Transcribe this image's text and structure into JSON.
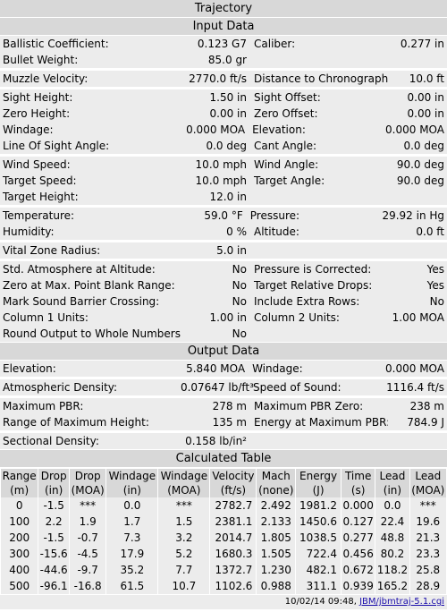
{
  "title": "Trajectory",
  "input_header": "Input Data",
  "output_header": "Output Data",
  "calc_header": "Calculated Table",
  "input_rows": [
    {
      "l1": "Ballistic Coefficient:",
      "v1": "0.123 G7",
      "l2": "Caliber:",
      "v2": "0.277 in",
      "gap": false
    },
    {
      "l1": "Bullet Weight:",
      "v1": "85.0 gr",
      "l2": "",
      "v2": "",
      "gap": false
    },
    {
      "l1": "Muzzle Velocity:",
      "v1": "2770.0 ft/s",
      "l2": "Distance to Chronograph:",
      "v2": "10.0 ft",
      "gap": true
    },
    {
      "l1": "Sight Height:",
      "v1": "1.50 in",
      "l2": "Sight Offset:",
      "v2": "0.00 in",
      "gap": true
    },
    {
      "l1": "Zero Height:",
      "v1": "0.00 in",
      "l2": "Zero Offset:",
      "v2": "0.00 in",
      "gap": false
    },
    {
      "l1": "Windage:",
      "v1": "0.000 MOA",
      "l2": "Elevation:",
      "v2": "0.000 MOA",
      "gap": false
    },
    {
      "l1": "Line Of Sight Angle:",
      "v1": "0.0 deg",
      "l2": "Cant Angle:",
      "v2": "0.0 deg",
      "gap": false
    },
    {
      "l1": "Wind Speed:",
      "v1": "10.0 mph",
      "l2": "Wind Angle:",
      "v2": "90.0 deg",
      "gap": true
    },
    {
      "l1": "Target Speed:",
      "v1": "10.0 mph",
      "l2": "Target Angle:",
      "v2": "90.0 deg",
      "gap": false
    },
    {
      "l1": "Target Height:",
      "v1": "12.0 in",
      "l2": "",
      "v2": "",
      "gap": false
    },
    {
      "l1": "Temperature:",
      "v1": "59.0 °F",
      "l2": "Pressure:",
      "v2": "29.92 in Hg",
      "gap": true
    },
    {
      "l1": "Humidity:",
      "v1": "0 %",
      "l2": "Altitude:",
      "v2": "0.0 ft",
      "gap": false
    },
    {
      "l1": "Vital Zone Radius:",
      "v1": "5.0 in",
      "l2": "",
      "v2": "",
      "gap": true
    },
    {
      "l1": "Std. Atmosphere at Altitude:",
      "v1": "No",
      "l2": "Pressure is Corrected:",
      "v2": "Yes",
      "gap": true
    },
    {
      "l1": "Zero at Max. Point Blank Range:",
      "v1": "No",
      "l2": "Target Relative Drops:",
      "v2": "Yes",
      "gap": false
    },
    {
      "l1": "Mark Sound Barrier Crossing:",
      "v1": "No",
      "l2": "Include Extra Rows:",
      "v2": "No",
      "gap": false
    },
    {
      "l1": "Column 1 Units:",
      "v1": "1.00 in",
      "l2": "Column 2 Units:",
      "v2": "1.00 MOA",
      "gap": false
    },
    {
      "l1": "Round Output to Whole Numbers:",
      "v1": "No",
      "l2": "",
      "v2": "",
      "gap": false
    }
  ],
  "output_rows": [
    {
      "l1": "Elevation:",
      "v1": "5.840 MOA",
      "l2": "Windage:",
      "v2": "0.000 MOA",
      "gap": false
    },
    {
      "l1": "Atmospheric Density:",
      "v1": "0.07647 lb/ft³",
      "l2": "Speed of Sound:",
      "v2": "1116.4 ft/s",
      "gap": true
    },
    {
      "l1": "Maximum PBR:",
      "v1": "278 m",
      "l2": "Maximum PBR Zero:",
      "v2": "238 m",
      "gap": true
    },
    {
      "l1": "Range of Maximum Height:",
      "v1": "135 m",
      "l2": "Energy at Maximum PBR:",
      "v2": "784.9 J",
      "gap": false
    },
    {
      "l1": "Sectional Density:",
      "v1": "0.158 lb/in²",
      "l2": "",
      "v2": "",
      "gap": true
    }
  ],
  "calc_columns": [
    {
      "name": "Range",
      "unit": "(m)"
    },
    {
      "name": "Drop",
      "unit": "(in)"
    },
    {
      "name": "Drop",
      "unit": "(MOA)"
    },
    {
      "name": "Windage",
      "unit": "(in)"
    },
    {
      "name": "Windage",
      "unit": "(MOA)"
    },
    {
      "name": "Velocity",
      "unit": "(ft/s)"
    },
    {
      "name": "Mach",
      "unit": "(none)"
    },
    {
      "name": "Energy",
      "unit": "(J)"
    },
    {
      "name": "Time",
      "unit": "(s)"
    },
    {
      "name": "Lead",
      "unit": "(in)"
    },
    {
      "name": "Lead",
      "unit": "(MOA)"
    }
  ],
  "calc_rows": [
    [
      "0",
      "-1.5",
      "***",
      "0.0",
      "***",
      "2782.7",
      "2.492",
      "1981.2",
      "0.000",
      "0.0",
      "***"
    ],
    [
      "100",
      "2.2",
      "1.9",
      "1.7",
      "1.5",
      "2381.1",
      "2.133",
      "1450.6",
      "0.127",
      "22.4",
      "19.6"
    ],
    [
      "200",
      "-1.5",
      "-0.7",
      "7.3",
      "3.2",
      "2014.7",
      "1.805",
      "1038.5",
      "0.277",
      "48.8",
      "21.3"
    ],
    [
      "300",
      "-15.6",
      "-4.5",
      "17.9",
      "5.2",
      "1680.3",
      "1.505",
      "722.4",
      "0.456",
      "80.2",
      "23.3"
    ],
    [
      "400",
      "-44.6",
      "-9.7",
      "35.2",
      "7.7",
      "1372.7",
      "1.230",
      "482.1",
      "0.672",
      "118.2",
      "25.8"
    ],
    [
      "500",
      "-96.1",
      "-16.8",
      "61.5",
      "10.7",
      "1102.6",
      "0.988",
      "311.1",
      "0.939",
      "165.2",
      "28.9"
    ]
  ],
  "footer": {
    "timestamp": "10/02/14 09:48,",
    "link_text": "JBM/jbmtraj-5.1.cgi"
  }
}
